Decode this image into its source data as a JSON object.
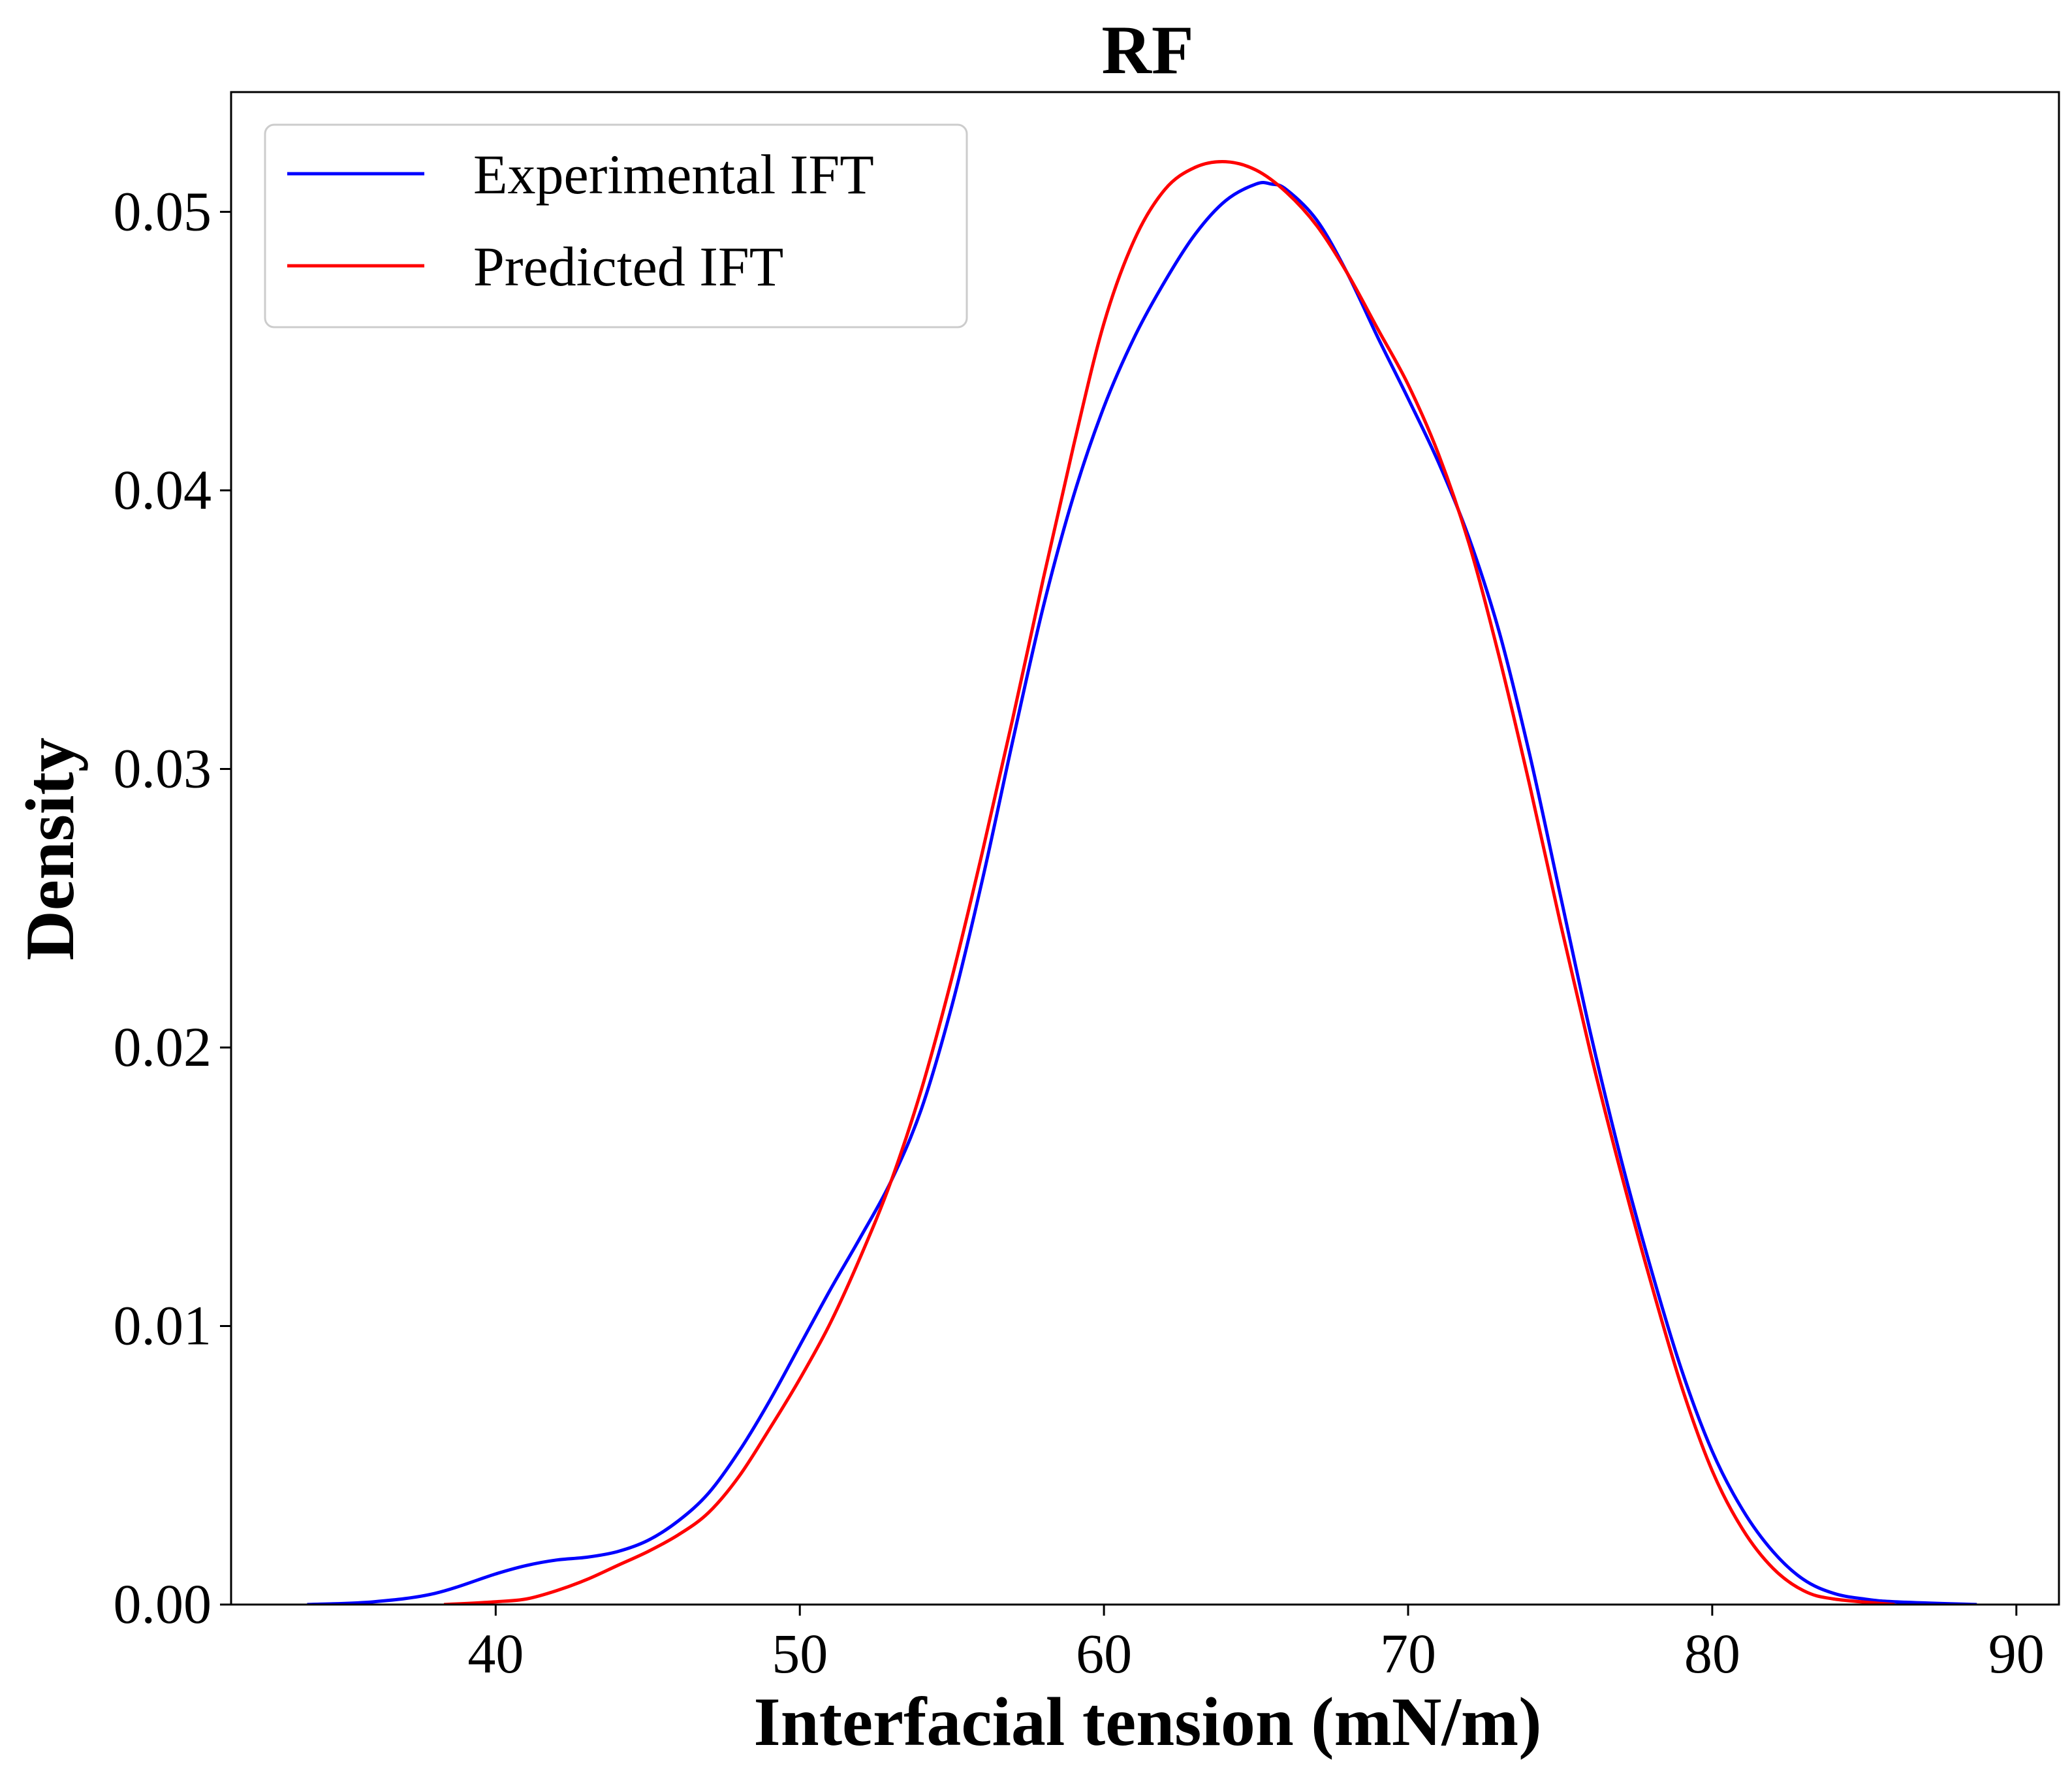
{
  "chart_data": {
    "type": "line",
    "title": "RF",
    "xlabel": "Interfacial tension (mN/m)",
    "ylabel": "Density",
    "xlim": [
      31.3,
      91.4
    ],
    "ylim": [
      0,
      0.0543
    ],
    "xticks": [
      40,
      50,
      60,
      70,
      80,
      90
    ],
    "xtick_labels": [
      "40",
      "50",
      "60",
      "70",
      "80",
      "90"
    ],
    "yticks": [
      0,
      0.01,
      0.02,
      0.03,
      0.04,
      0.05
    ],
    "ytick_labels": [
      "0.00",
      "0.01",
      "0.02",
      "0.03",
      "0.04",
      "0.05"
    ],
    "grid": false,
    "legend_position": "upper-left",
    "series": [
      {
        "name": "Experimental IFT",
        "color": "#0000ff",
        "points": [
          [
            33.8,
            0.0
          ],
          [
            36.0,
            0.0001
          ],
          [
            38.0,
            0.0004
          ],
          [
            40.0,
            0.0011
          ],
          [
            41.0,
            0.0014
          ],
          [
            42.0,
            0.0016
          ],
          [
            43.0,
            0.0017
          ],
          [
            44.0,
            0.0019
          ],
          [
            45.0,
            0.0023
          ],
          [
            46.0,
            0.003
          ],
          [
            47.0,
            0.004
          ],
          [
            48.0,
            0.0055
          ],
          [
            49.0,
            0.0073
          ],
          [
            50.0,
            0.0093
          ],
          [
            51.0,
            0.0113
          ],
          [
            52.0,
            0.0132
          ],
          [
            53.0,
            0.0152
          ],
          [
            54.0,
            0.0178
          ],
          [
            55.0,
            0.0215
          ],
          [
            56.0,
            0.026
          ],
          [
            57.0,
            0.031
          ],
          [
            58.0,
            0.0358
          ],
          [
            59.0,
            0.0398
          ],
          [
            60.0,
            0.043
          ],
          [
            61.0,
            0.0455
          ],
          [
            62.0,
            0.0475
          ],
          [
            63.0,
            0.0492
          ],
          [
            64.0,
            0.0504
          ],
          [
            65.0,
            0.051
          ],
          [
            65.5,
            0.051
          ],
          [
            66.0,
            0.0508
          ],
          [
            67.0,
            0.0497
          ],
          [
            68.0,
            0.0478
          ],
          [
            69.0,
            0.0455
          ],
          [
            70.0,
            0.0433
          ],
          [
            71.0,
            0.041
          ],
          [
            72.0,
            0.0383
          ],
          [
            73.0,
            0.0349
          ],
          [
            74.0,
            0.0305
          ],
          [
            75.0,
            0.0255
          ],
          [
            76.0,
            0.0205
          ],
          [
            77.0,
            0.016
          ],
          [
            78.0,
            0.012
          ],
          [
            79.0,
            0.0084
          ],
          [
            80.0,
            0.0055
          ],
          [
            81.0,
            0.0034
          ],
          [
            82.0,
            0.0019
          ],
          [
            83.0,
            0.0009
          ],
          [
            84.0,
            0.0004
          ],
          [
            85.0,
            0.0002
          ],
          [
            86.0,
            0.0001
          ],
          [
            88.7,
            0.0
          ]
        ]
      },
      {
        "name": "Predicted IFT",
        "color": "#ff0000",
        "points": [
          [
            38.3,
            0.0
          ],
          [
            40.0,
            0.0001
          ],
          [
            41.0,
            0.0002
          ],
          [
            42.0,
            0.0005
          ],
          [
            43.0,
            0.0009
          ],
          [
            44.0,
            0.0014
          ],
          [
            45.0,
            0.0019
          ],
          [
            46.0,
            0.0025
          ],
          [
            47.0,
            0.0033
          ],
          [
            48.0,
            0.0046
          ],
          [
            49.0,
            0.0063
          ],
          [
            50.0,
            0.0081
          ],
          [
            51.0,
            0.0101
          ],
          [
            52.0,
            0.0125
          ],
          [
            53.0,
            0.0152
          ],
          [
            54.0,
            0.0185
          ],
          [
            55.0,
            0.0225
          ],
          [
            56.0,
            0.027
          ],
          [
            57.0,
            0.0318
          ],
          [
            58.0,
            0.0368
          ],
          [
            59.0,
            0.0416
          ],
          [
            60.0,
            0.046
          ],
          [
            61.0,
            0.049
          ],
          [
            62.0,
            0.0508
          ],
          [
            63.0,
            0.0516
          ],
          [
            64.0,
            0.0518
          ],
          [
            65.0,
            0.0515
          ],
          [
            66.0,
            0.0507
          ],
          [
            67.0,
            0.0495
          ],
          [
            68.0,
            0.0478
          ],
          [
            69.0,
            0.0458
          ],
          [
            70.0,
            0.0438
          ],
          [
            71.0,
            0.0413
          ],
          [
            72.0,
            0.0381
          ],
          [
            73.0,
            0.034
          ],
          [
            74.0,
            0.0294
          ],
          [
            75.0,
            0.0245
          ],
          [
            76.0,
            0.0198
          ],
          [
            77.0,
            0.0155
          ],
          [
            78.0,
            0.0115
          ],
          [
            79.0,
            0.0078
          ],
          [
            80.0,
            0.0048
          ],
          [
            81.0,
            0.0027
          ],
          [
            82.0,
            0.0013
          ],
          [
            83.0,
            0.0005
          ],
          [
            84.0,
            0.0002
          ],
          [
            86.0,
            0.0
          ]
        ]
      }
    ]
  }
}
